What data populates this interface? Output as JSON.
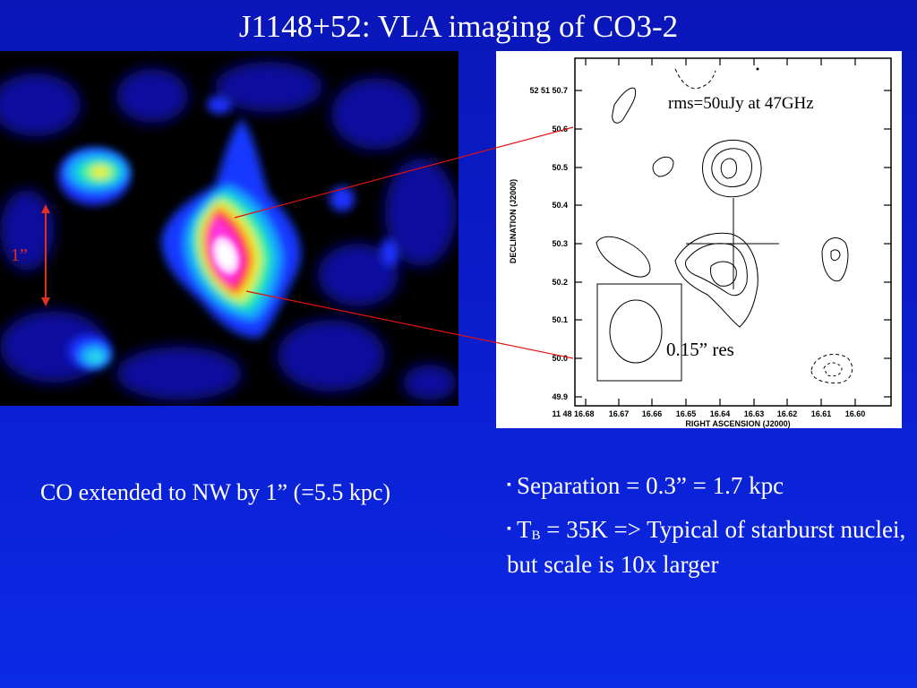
{
  "title": "J1148+52: VLA imaging of CO3-2",
  "left_image": {
    "scale_label": "1”",
    "colors": {
      "arrow": "#e03020",
      "connector": "#e01010"
    }
  },
  "contour_plot": {
    "rms_label": "rms=50uJy at 47GHz",
    "res_label": "0.15” res",
    "y_axis_title": "DECLINATION (J2000)",
    "x_axis_title": "RIGHT ASCENSION (J2000)",
    "y_ticks": [
      "52 51 50.7",
      "50.6",
      "50.5",
      "50.4",
      "50.3",
      "50.2",
      "50.1",
      "50.0",
      "49.9"
    ],
    "x_ticks": [
      "11 48 16.68",
      "16.67",
      "16.66",
      "16.65",
      "16.64",
      "16.63",
      "16.62",
      "16.61",
      "16.60"
    ]
  },
  "notes": {
    "left": "CO extended to NW by 1” (=5.5 kpc)",
    "bullet_marker": "▪",
    "bullet1": "Separation = 0.3” = 1.7 kpc",
    "bullet2_pre": "T",
    "bullet2_sub": "B",
    "bullet2_post": " = 35K => Typical of starburst nuclei, but scale is 10x larger"
  },
  "colors": {
    "background": "#0b1fd0",
    "text": "#ffffff"
  }
}
